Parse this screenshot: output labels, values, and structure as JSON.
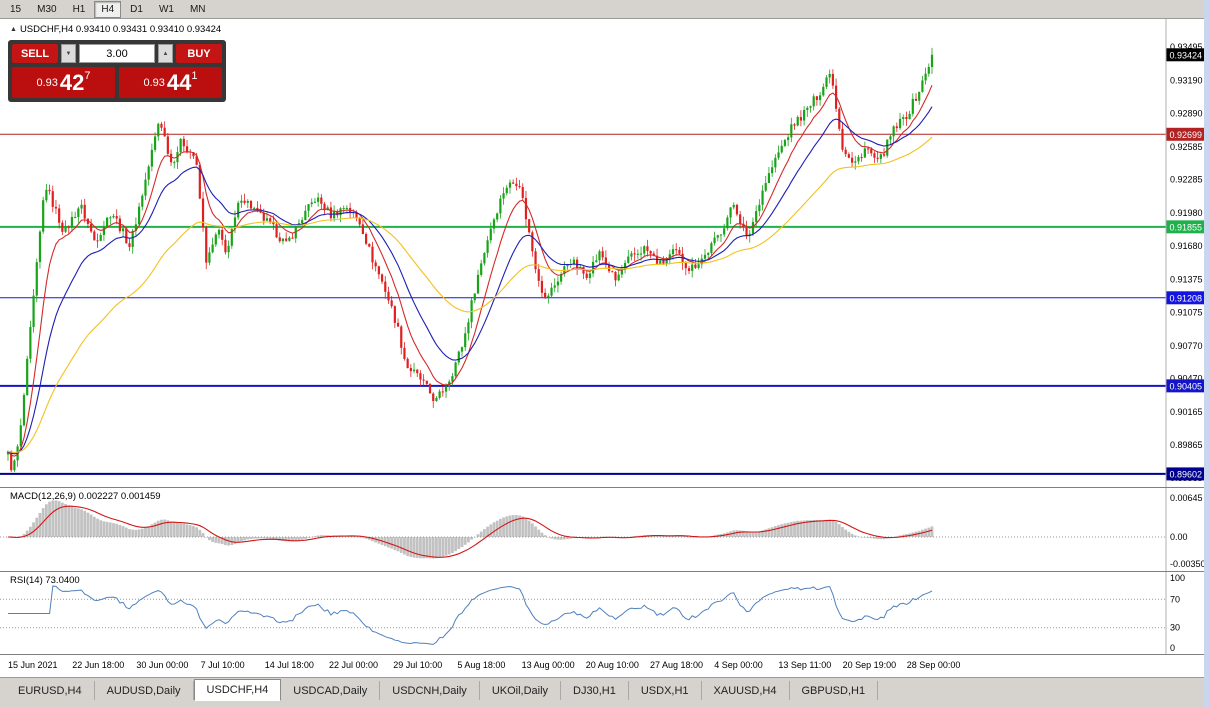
{
  "toolbar": {
    "timeframes": [
      {
        "label": "15",
        "active": false
      },
      {
        "label": "M30",
        "active": false
      },
      {
        "label": "H1",
        "active": false
      },
      {
        "label": "H4",
        "active": true
      },
      {
        "label": "D1",
        "active": false
      },
      {
        "label": "W1",
        "active": false
      },
      {
        "label": "MN",
        "active": false
      }
    ]
  },
  "chart_header": {
    "symbol_line": "USDCHF,H4 0.93410 0.93431 0.93410 0.93424"
  },
  "trade_panel": {
    "sell_label": "SELL",
    "buy_label": "BUY",
    "volume": "3.00",
    "sell_price": {
      "small": "0.93",
      "big": "42",
      "sup": "7"
    },
    "buy_price": {
      "small": "0.93",
      "big": "44",
      "sup": "1"
    }
  },
  "chart_data": {
    "type": "candlestick",
    "symbol": "USDCHF",
    "timeframe": "H4",
    "ohlc_header": {
      "open": "0.93410",
      "high": "0.93431",
      "low": "0.93410",
      "close": "0.93424"
    },
    "y_min": 0.8951,
    "y_max": 0.9365,
    "y_ticks": [
      0.93495,
      0.9319,
      0.9289,
      0.92585,
      0.92285,
      0.9198,
      0.9168,
      0.91375,
      0.91075,
      0.9077,
      0.9047,
      0.90165,
      0.89865,
      0.89565
    ],
    "current_price": {
      "value": "0.93424",
      "price": 0.93424,
      "badge_color": "#000000"
    },
    "horizontal_lines": [
      {
        "price": 0.92699,
        "color": "#b22222",
        "label": "0.92699",
        "width": 1
      },
      {
        "price": 0.91855,
        "color": "#21b14c",
        "label": "0.91855",
        "width": 2
      },
      {
        "price": 0.91208,
        "color": "#1414e0",
        "label": "0.91208",
        "width": 1
      },
      {
        "price": 0.90405,
        "color": "#1414c8",
        "label": "0.90405",
        "width": 2
      },
      {
        "price": 0.89602,
        "color": "#000090",
        "label": "0.89602",
        "width": 2
      }
    ],
    "candle_count": 290,
    "ma_lines": [
      {
        "period": 9,
        "color": "#d42a2a",
        "type": "ema"
      },
      {
        "period": 21,
        "color": "#1e1eb4",
        "type": "ema"
      },
      {
        "period": 55,
        "color": "#f2c21e",
        "type": "ema"
      }
    ],
    "price_anchors": [
      [
        0.0,
        0.8978
      ],
      [
        0.005,
        0.8962
      ],
      [
        0.013,
        0.8995
      ],
      [
        0.04,
        0.9225
      ],
      [
        0.061,
        0.918
      ],
      [
        0.078,
        0.9206
      ],
      [
        0.094,
        0.9172
      ],
      [
        0.112,
        0.92
      ],
      [
        0.132,
        0.9168
      ],
      [
        0.151,
        0.9236
      ],
      [
        0.164,
        0.9285
      ],
      [
        0.177,
        0.9243
      ],
      [
        0.188,
        0.9264
      ],
      [
        0.203,
        0.9248
      ],
      [
        0.215,
        0.9152
      ],
      [
        0.227,
        0.9182
      ],
      [
        0.237,
        0.9162
      ],
      [
        0.252,
        0.9214
      ],
      [
        0.27,
        0.9198
      ],
      [
        0.285,
        0.9186
      ],
      [
        0.301,
        0.9169
      ],
      [
        0.317,
        0.9192
      ],
      [
        0.333,
        0.9212
      ],
      [
        0.35,
        0.9196
      ],
      [
        0.366,
        0.9205
      ],
      [
        0.382,
        0.9188
      ],
      [
        0.393,
        0.9159
      ],
      [
        0.408,
        0.9129
      ],
      [
        0.421,
        0.9096
      ],
      [
        0.431,
        0.9059
      ],
      [
        0.447,
        0.9046
      ],
      [
        0.463,
        0.9026
      ],
      [
        0.479,
        0.9049
      ],
      [
        0.493,
        0.9081
      ],
      [
        0.507,
        0.9136
      ],
      [
        0.522,
        0.9184
      ],
      [
        0.538,
        0.9222
      ],
      [
        0.553,
        0.9228
      ],
      [
        0.57,
        0.9153
      ],
      [
        0.581,
        0.9119
      ],
      [
        0.592,
        0.9133
      ],
      [
        0.608,
        0.9156
      ],
      [
        0.625,
        0.9141
      ],
      [
        0.641,
        0.9162
      ],
      [
        0.657,
        0.9136
      ],
      [
        0.673,
        0.9157
      ],
      [
        0.689,
        0.9166
      ],
      [
        0.706,
        0.9151
      ],
      [
        0.722,
        0.9163
      ],
      [
        0.738,
        0.9147
      ],
      [
        0.754,
        0.9159
      ],
      [
        0.77,
        0.9179
      ],
      [
        0.786,
        0.9207
      ],
      [
        0.8,
        0.9173
      ],
      [
        0.818,
        0.9223
      ],
      [
        0.834,
        0.9253
      ],
      [
        0.85,
        0.9279
      ],
      [
        0.866,
        0.9293
      ],
      [
        0.882,
        0.9313
      ],
      [
        0.89,
        0.933
      ],
      [
        0.903,
        0.9259
      ],
      [
        0.915,
        0.9241
      ],
      [
        0.928,
        0.9258
      ],
      [
        0.942,
        0.9243
      ],
      [
        0.958,
        0.9273
      ],
      [
        0.974,
        0.9289
      ],
      [
        0.988,
        0.9313
      ],
      [
        1.0,
        0.9342
      ]
    ],
    "x_labels": [
      "15 Jun 2021",
      "22 Jun 18:00",
      "30 Jun 00:00",
      "7 Jul 10:00",
      "14 Jul 18:00",
      "22 Jul 00:00",
      "29 Jul 10:00",
      "5 Aug 18:00",
      "13 Aug 00:00",
      "20 Aug 10:00",
      "27 Aug 18:00",
      "4 Sep 00:00",
      "13 Sep 11:00",
      "20 Sep 19:00",
      "28 Sep 00:00"
    ]
  },
  "macd": {
    "label": "MACD(12,26,9) 0.002227 0.001459",
    "fast": 12,
    "slow": 26,
    "signal": 9,
    "axis_top": "0.00645",
    "axis_zero": "0.00",
    "axis_bottom": "-0.00350"
  },
  "rsi": {
    "label": "RSI(14) 73.0400",
    "period": 14,
    "levels": [
      70,
      30
    ],
    "axis": [
      "100",
      "70",
      "30",
      "0"
    ]
  },
  "tabs": [
    {
      "label": "EURUSD,H4",
      "active": false
    },
    {
      "label": "AUDUSD,Daily",
      "active": false
    },
    {
      "label": "USDCHF,H4",
      "active": true
    },
    {
      "label": "USDCAD,Daily",
      "active": false
    },
    {
      "label": "USDCNH,Daily",
      "active": false
    },
    {
      "label": "UKOil,Daily",
      "active": false
    },
    {
      "label": "DJ30,H1",
      "active": false
    },
    {
      "label": "USDX,H1",
      "active": false
    },
    {
      "label": "XAUUSD,H4",
      "active": false
    },
    {
      "label": "GBPUSD,H1",
      "active": false
    }
  ],
  "colors": {
    "candle_up": "#18a318",
    "candle_down": "#e01f1f",
    "macd_hist": "#c2c2c2",
    "macd_signal": "#d01818",
    "rsi_line": "#4f81bd"
  }
}
